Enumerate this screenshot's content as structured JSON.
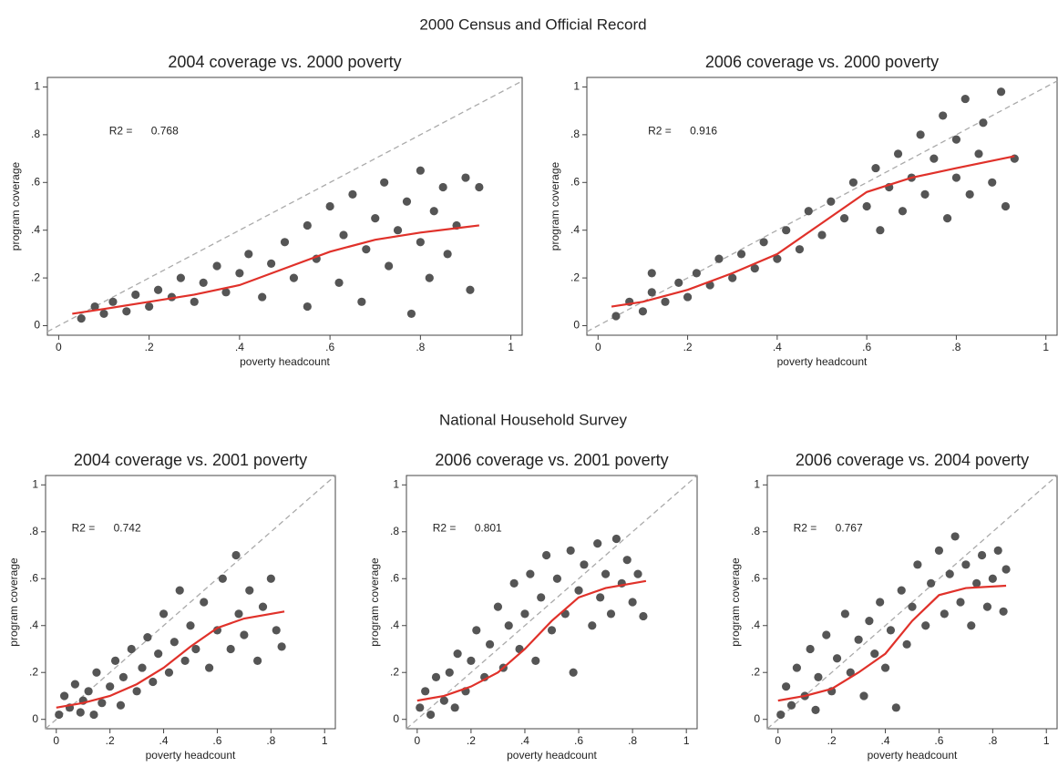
{
  "headings": [
    "2000 Census and Official Record",
    "National Household Survey"
  ],
  "chart_data": [
    {
      "type": "scatter",
      "title": "2004 coverage vs. 2000 poverty",
      "xlabel": "poverty headcount",
      "ylabel": "program coverage",
      "r2_label": "R2 =",
      "r2": "0.768",
      "diagonal": true,
      "xlim": [
        -0.025,
        1.025
      ],
      "ylim": [
        -0.04,
        1.04
      ],
      "xticks": [
        0,
        {
          "value": 0.2,
          "label": ".2"
        },
        {
          "value": 0.4,
          "label": ".4"
        },
        {
          "value": 0.6,
          "label": ".6"
        },
        {
          "value": 0.8,
          "label": ".8"
        },
        1
      ],
      "yticks": [
        0,
        {
          "value": 0.2,
          "label": ".2"
        },
        {
          "value": 0.4,
          "label": ".4"
        },
        {
          "value": 0.6,
          "label": ".6"
        },
        {
          "value": 0.8,
          "label": ".8"
        },
        1
      ],
      "points": {
        "color": "#555555",
        "x": [
          0.05,
          0.08,
          0.1,
          0.12,
          0.15,
          0.17,
          0.2,
          0.22,
          0.25,
          0.27,
          0.3,
          0.32,
          0.35,
          0.37,
          0.4,
          0.42,
          0.45,
          0.47,
          0.5,
          0.52,
          0.55,
          0.57,
          0.6,
          0.62,
          0.63,
          0.65,
          0.67,
          0.68,
          0.7,
          0.72,
          0.73,
          0.75,
          0.77,
          0.78,
          0.8,
          0.8,
          0.82,
          0.83,
          0.85,
          0.86,
          0.88,
          0.9,
          0.91,
          0.93,
          0.55
        ],
        "y": [
          0.03,
          0.08,
          0.05,
          0.1,
          0.06,
          0.13,
          0.08,
          0.15,
          0.12,
          0.2,
          0.1,
          0.18,
          0.25,
          0.14,
          0.22,
          0.3,
          0.12,
          0.26,
          0.35,
          0.2,
          0.42,
          0.28,
          0.5,
          0.18,
          0.38,
          0.55,
          0.1,
          0.32,
          0.45,
          0.6,
          0.25,
          0.4,
          0.52,
          0.05,
          0.35,
          0.65,
          0.2,
          0.48,
          0.58,
          0.3,
          0.42,
          0.62,
          0.15,
          0.58,
          0.08
        ]
      },
      "fit": {
        "color": "#e0312a",
        "x": [
          0.03,
          0.1,
          0.2,
          0.3,
          0.4,
          0.5,
          0.6,
          0.7,
          0.8,
          0.93
        ],
        "y": [
          0.05,
          0.07,
          0.1,
          0.13,
          0.17,
          0.24,
          0.31,
          0.36,
          0.39,
          0.42
        ]
      }
    },
    {
      "type": "scatter",
      "title": "2006 coverage vs. 2000 poverty",
      "xlabel": "poverty headcount",
      "ylabel": "program coverage",
      "r2_label": "R2 =",
      "r2": "0.916",
      "diagonal": true,
      "xlim": [
        -0.025,
        1.025
      ],
      "ylim": [
        -0.04,
        1.04
      ],
      "xticks": [
        0,
        {
          "value": 0.2,
          "label": ".2"
        },
        {
          "value": 0.4,
          "label": ".4"
        },
        {
          "value": 0.6,
          "label": ".6"
        },
        {
          "value": 0.8,
          "label": ".8"
        },
        1
      ],
      "yticks": [
        0,
        {
          "value": 0.2,
          "label": ".2"
        },
        {
          "value": 0.4,
          "label": ".4"
        },
        {
          "value": 0.6,
          "label": ".6"
        },
        {
          "value": 0.8,
          "label": ".8"
        },
        1
      ],
      "points": {
        "color": "#555555",
        "x": [
          0.04,
          0.07,
          0.1,
          0.12,
          0.15,
          0.18,
          0.2,
          0.22,
          0.25,
          0.27,
          0.3,
          0.32,
          0.35,
          0.37,
          0.4,
          0.42,
          0.45,
          0.47,
          0.5,
          0.52,
          0.55,
          0.57,
          0.6,
          0.62,
          0.63,
          0.65,
          0.67,
          0.68,
          0.7,
          0.72,
          0.73,
          0.75,
          0.77,
          0.78,
          0.8,
          0.8,
          0.82,
          0.83,
          0.85,
          0.86,
          0.88,
          0.9,
          0.91,
          0.93,
          0.12
        ],
        "y": [
          0.04,
          0.1,
          0.06,
          0.14,
          0.1,
          0.18,
          0.12,
          0.22,
          0.17,
          0.28,
          0.2,
          0.3,
          0.24,
          0.35,
          0.28,
          0.4,
          0.32,
          0.48,
          0.38,
          0.52,
          0.45,
          0.6,
          0.5,
          0.66,
          0.4,
          0.58,
          0.72,
          0.48,
          0.62,
          0.8,
          0.55,
          0.7,
          0.88,
          0.45,
          0.62,
          0.78,
          0.95,
          0.55,
          0.72,
          0.85,
          0.6,
          0.98,
          0.5,
          0.7,
          0.22
        ]
      },
      "fit": {
        "color": "#e0312a",
        "x": [
          0.03,
          0.1,
          0.2,
          0.3,
          0.4,
          0.5,
          0.6,
          0.7,
          0.8,
          0.93
        ],
        "y": [
          0.08,
          0.1,
          0.15,
          0.22,
          0.3,
          0.43,
          0.56,
          0.62,
          0.66,
          0.71
        ]
      }
    },
    {
      "type": "scatter",
      "title": "2004 coverage vs. 2001 poverty",
      "xlabel": "poverty headcount",
      "ylabel": "program coverage",
      "r2_label": "R2 =",
      "r2": "0.742",
      "diagonal": true,
      "xlim": [
        -0.04,
        1.04
      ],
      "ylim": [
        -0.04,
        1.04
      ],
      "xticks": [
        0,
        {
          "value": 0.2,
          "label": ".2"
        },
        {
          "value": 0.4,
          "label": ".4"
        },
        {
          "value": 0.6,
          "label": ".6"
        },
        {
          "value": 0.8,
          "label": ".8"
        },
        1
      ],
      "yticks": [
        0,
        {
          "value": 0.2,
          "label": ".2"
        },
        {
          "value": 0.4,
          "label": ".4"
        },
        {
          "value": 0.6,
          "label": ".6"
        },
        {
          "value": 0.8,
          "label": ".8"
        },
        1
      ],
      "points": {
        "color": "#555555",
        "x": [
          0.01,
          0.03,
          0.05,
          0.07,
          0.09,
          0.1,
          0.12,
          0.14,
          0.15,
          0.17,
          0.2,
          0.22,
          0.24,
          0.25,
          0.28,
          0.3,
          0.32,
          0.34,
          0.36,
          0.38,
          0.4,
          0.42,
          0.44,
          0.46,
          0.48,
          0.5,
          0.52,
          0.55,
          0.57,
          0.6,
          0.62,
          0.65,
          0.67,
          0.68,
          0.7,
          0.72,
          0.75,
          0.77,
          0.8,
          0.82,
          0.84
        ],
        "y": [
          0.02,
          0.1,
          0.05,
          0.15,
          0.03,
          0.08,
          0.12,
          0.02,
          0.2,
          0.07,
          0.14,
          0.25,
          0.06,
          0.18,
          0.3,
          0.12,
          0.22,
          0.35,
          0.16,
          0.28,
          0.45,
          0.2,
          0.33,
          0.55,
          0.25,
          0.4,
          0.3,
          0.5,
          0.22,
          0.38,
          0.6,
          0.3,
          0.7,
          0.45,
          0.36,
          0.55,
          0.25,
          0.48,
          0.6,
          0.38,
          0.31
        ]
      },
      "fit": {
        "color": "#e0312a",
        "x": [
          0,
          0.1,
          0.2,
          0.3,
          0.4,
          0.5,
          0.6,
          0.7,
          0.85
        ],
        "y": [
          0.05,
          0.07,
          0.1,
          0.15,
          0.22,
          0.31,
          0.39,
          0.43,
          0.46
        ]
      }
    },
    {
      "type": "scatter",
      "title": "2006 coverage vs. 2001 poverty",
      "xlabel": "poverty headcount",
      "ylabel": "program coverage",
      "r2_label": "R2 =",
      "r2": "0.801",
      "diagonal": true,
      "xlim": [
        -0.04,
        1.04
      ],
      "ylim": [
        -0.04,
        1.04
      ],
      "xticks": [
        0,
        {
          "value": 0.2,
          "label": ".2"
        },
        {
          "value": 0.4,
          "label": ".4"
        },
        {
          "value": 0.6,
          "label": ".6"
        },
        {
          "value": 0.8,
          "label": ".8"
        },
        1
      ],
      "yticks": [
        0,
        {
          "value": 0.2,
          "label": ".2"
        },
        {
          "value": 0.4,
          "label": ".4"
        },
        {
          "value": 0.6,
          "label": ".6"
        },
        {
          "value": 0.8,
          "label": ".8"
        },
        1
      ],
      "points": {
        "color": "#555555",
        "x": [
          0.01,
          0.03,
          0.05,
          0.07,
          0.1,
          0.12,
          0.14,
          0.15,
          0.18,
          0.2,
          0.22,
          0.25,
          0.27,
          0.3,
          0.32,
          0.34,
          0.36,
          0.38,
          0.4,
          0.42,
          0.44,
          0.46,
          0.48,
          0.5,
          0.52,
          0.55,
          0.57,
          0.58,
          0.6,
          0.62,
          0.65,
          0.67,
          0.68,
          0.7,
          0.72,
          0.74,
          0.76,
          0.78,
          0.8,
          0.82,
          0.84
        ],
        "y": [
          0.05,
          0.12,
          0.02,
          0.18,
          0.08,
          0.2,
          0.05,
          0.28,
          0.12,
          0.25,
          0.38,
          0.18,
          0.32,
          0.48,
          0.22,
          0.4,
          0.58,
          0.3,
          0.45,
          0.62,
          0.25,
          0.52,
          0.7,
          0.38,
          0.6,
          0.45,
          0.72,
          0.2,
          0.55,
          0.66,
          0.4,
          0.75,
          0.52,
          0.62,
          0.45,
          0.77,
          0.58,
          0.68,
          0.5,
          0.62,
          0.44
        ]
      },
      "fit": {
        "color": "#e0312a",
        "x": [
          0,
          0.1,
          0.2,
          0.3,
          0.4,
          0.5,
          0.6,
          0.7,
          0.85
        ],
        "y": [
          0.08,
          0.1,
          0.14,
          0.2,
          0.3,
          0.42,
          0.52,
          0.56,
          0.59
        ]
      }
    },
    {
      "type": "scatter",
      "title": "2006 coverage vs. 2004 poverty",
      "xlabel": "poverty headcount",
      "ylabel": "program coverage",
      "r2_label": "R2 =",
      "r2": "0.767",
      "diagonal": true,
      "xlim": [
        -0.04,
        1.04
      ],
      "ylim": [
        -0.04,
        1.04
      ],
      "xticks": [
        0,
        {
          "value": 0.2,
          "label": ".2"
        },
        {
          "value": 0.4,
          "label": ".4"
        },
        {
          "value": 0.6,
          "label": ".6"
        },
        {
          "value": 0.8,
          "label": ".8"
        },
        1
      ],
      "yticks": [
        0,
        {
          "value": 0.2,
          "label": ".2"
        },
        {
          "value": 0.4,
          "label": ".4"
        },
        {
          "value": 0.6,
          "label": ".6"
        },
        {
          "value": 0.8,
          "label": ".8"
        },
        1
      ],
      "points": {
        "color": "#555555",
        "x": [
          0.01,
          0.03,
          0.05,
          0.07,
          0.1,
          0.12,
          0.14,
          0.15,
          0.18,
          0.2,
          0.22,
          0.25,
          0.27,
          0.3,
          0.32,
          0.34,
          0.36,
          0.38,
          0.4,
          0.42,
          0.44,
          0.46,
          0.48,
          0.5,
          0.52,
          0.55,
          0.57,
          0.6,
          0.62,
          0.64,
          0.66,
          0.68,
          0.7,
          0.72,
          0.74,
          0.76,
          0.78,
          0.8,
          0.82,
          0.84,
          0.85
        ],
        "y": [
          0.02,
          0.14,
          0.06,
          0.22,
          0.1,
          0.3,
          0.04,
          0.18,
          0.36,
          0.12,
          0.26,
          0.45,
          0.2,
          0.34,
          0.1,
          0.42,
          0.28,
          0.5,
          0.22,
          0.38,
          0.05,
          0.55,
          0.32,
          0.48,
          0.66,
          0.4,
          0.58,
          0.72,
          0.45,
          0.62,
          0.78,
          0.5,
          0.66,
          0.4,
          0.58,
          0.7,
          0.48,
          0.6,
          0.72,
          0.46,
          0.64
        ]
      },
      "fit": {
        "color": "#e0312a",
        "x": [
          0,
          0.1,
          0.2,
          0.3,
          0.4,
          0.5,
          0.6,
          0.7,
          0.85
        ],
        "y": [
          0.08,
          0.1,
          0.13,
          0.2,
          0.28,
          0.42,
          0.53,
          0.56,
          0.57
        ]
      }
    }
  ]
}
